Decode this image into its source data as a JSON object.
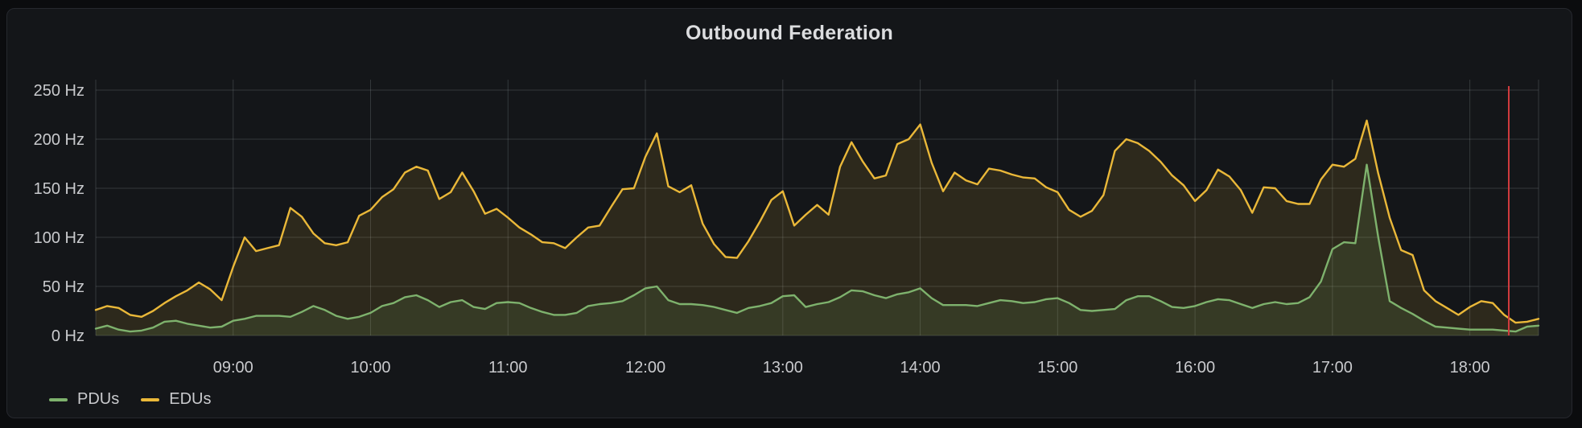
{
  "panel": {
    "title": "Outbound Federation"
  },
  "legend": {
    "series": [
      {
        "label": "PDUs",
        "color": "#7EB26D"
      },
      {
        "label": "EDUs",
        "color": "#EAB839"
      }
    ]
  },
  "chart_data": {
    "type": "area",
    "title": "Outbound Federation",
    "unit": "Hz",
    "grid": true,
    "legend_position": "bottom-left",
    "time_start": "08:00",
    "time_end": "18:30",
    "step_minutes": 5,
    "x_ticks": [
      "09:00",
      "10:00",
      "11:00",
      "12:00",
      "13:00",
      "14:00",
      "15:00",
      "16:00",
      "17:00",
      "18:00"
    ],
    "y_ticks": [
      "0 Hz",
      "50 Hz",
      "100 Hz",
      "150 Hz",
      "200 Hz",
      "250 Hz"
    ],
    "y_tick_values": [
      0,
      50,
      100,
      150,
      200,
      250
    ],
    "ylim": [
      0,
      260
    ],
    "annotation": {
      "type": "vline",
      "time": "18:17",
      "color": "#D03B3E"
    },
    "colors": {
      "background": "#141619",
      "gridline": "rgba(201,209,217,0.18)",
      "tick_text": "#C9CACD",
      "pdu_line": "#7EB26D",
      "edu_line": "#EAB839",
      "pdu_fill": "rgba(126,178,109,0.12)",
      "edu_fill": "rgba(234,184,57,0.12)",
      "annotation_red": "#D03B3E"
    },
    "series": [
      {
        "name": "EDUs",
        "color": "#EAB839",
        "values": [
          26,
          30,
          28,
          21,
          19,
          25,
          33,
          40,
          46,
          54,
          47,
          36,
          70,
          100,
          86,
          89,
          92,
          130,
          121,
          104,
          94,
          92,
          95,
          122,
          128,
          141,
          149,
          166,
          172,
          168,
          139,
          146,
          166,
          147,
          124,
          129,
          120,
          110,
          103,
          95,
          94,
          89,
          100,
          110,
          112,
          131,
          149,
          150,
          182,
          206,
          152,
          146,
          153,
          114,
          93,
          80,
          79,
          96,
          116,
          138,
          147,
          112,
          123,
          133,
          123,
          172,
          197,
          177,
          160,
          163,
          195,
          200,
          215,
          176,
          147,
          166,
          158,
          154,
          170,
          168,
          164,
          161,
          160,
          151,
          146,
          128,
          121,
          127,
          143,
          188,
          200,
          196,
          188,
          177,
          163,
          153,
          137,
          148,
          169,
          162,
          148,
          125,
          151,
          150,
          137,
          134,
          134,
          159,
          174,
          172,
          180,
          219,
          165,
          120,
          87,
          82,
          46,
          35,
          28,
          21,
          29,
          35,
          33,
          21,
          13,
          14,
          17
        ]
      },
      {
        "name": "PDUs",
        "color": "#7EB26D",
        "values": [
          7,
          10,
          6,
          4,
          5,
          8,
          14,
          15,
          12,
          10,
          8,
          9,
          15,
          17,
          20,
          20,
          20,
          19,
          24,
          30,
          26,
          20,
          17,
          19,
          23,
          30,
          33,
          39,
          41,
          36,
          29,
          34,
          36,
          29,
          27,
          33,
          34,
          33,
          28,
          24,
          21,
          21,
          23,
          30,
          32,
          33,
          35,
          41,
          48,
          50,
          36,
          32,
          32,
          31,
          29,
          26,
          23,
          28,
          30,
          33,
          40,
          41,
          29,
          32,
          34,
          39,
          46,
          45,
          41,
          38,
          42,
          44,
          48,
          38,
          31,
          31,
          31,
          30,
          33,
          36,
          35,
          33,
          34,
          37,
          38,
          33,
          26,
          25,
          26,
          27,
          36,
          40,
          40,
          35,
          29,
          28,
          30,
          34,
          37,
          36,
          32,
          28,
          32,
          34,
          32,
          33,
          39,
          55,
          88,
          95,
          94,
          174,
          100,
          35,
          28,
          22,
          15,
          9,
          8,
          7,
          6,
          6,
          6,
          5,
          4,
          9,
          10
        ]
      }
    ]
  }
}
